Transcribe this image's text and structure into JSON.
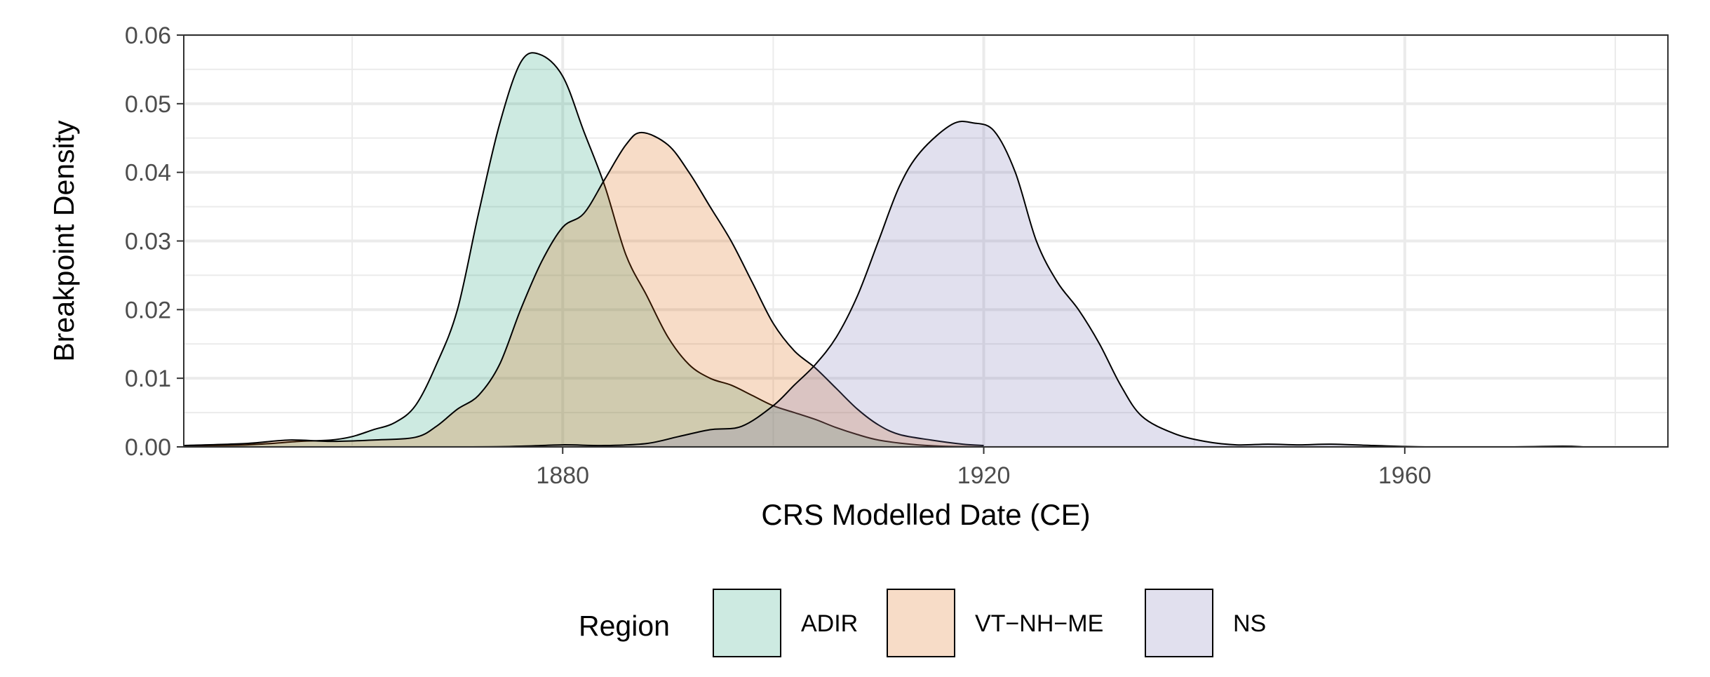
{
  "chart_data": {
    "type": "area",
    "subtype": "density",
    "title": "",
    "xlabel": "CRS Modelled Date (CE)",
    "ylabel": "Breakpoint Density",
    "xlim": [
      1844,
      1985
    ],
    "ylim": [
      0,
      0.06
    ],
    "x_ticks": [
      1880,
      1920,
      1960
    ],
    "x_minor_ticks": [
      1860,
      1900,
      1940,
      1980
    ],
    "y_ticks": [
      0.0,
      0.01,
      0.02,
      0.03,
      0.04,
      0.05,
      0.06
    ],
    "y_tick_labels": [
      "0.00",
      "0.01",
      "0.02",
      "0.03",
      "0.04",
      "0.05",
      "0.06"
    ],
    "x_tick_labels": [
      "1880",
      "1920",
      "1960"
    ],
    "grid": true,
    "legend": {
      "title": "Region",
      "position": "bottom"
    },
    "series": [
      {
        "name": "ADIR",
        "color": "#1b9e77",
        "points": [
          [
            1844,
            0.0002
          ],
          [
            1850,
            0.0003
          ],
          [
            1855,
            0.0008
          ],
          [
            1858,
            0.001
          ],
          [
            1860,
            0.0015
          ],
          [
            1862,
            0.0025
          ],
          [
            1864,
            0.0035
          ],
          [
            1866,
            0.006
          ],
          [
            1868,
            0.012
          ],
          [
            1870,
            0.02
          ],
          [
            1872,
            0.034
          ],
          [
            1874,
            0.047
          ],
          [
            1876,
            0.056
          ],
          [
            1877.8,
            0.0572
          ],
          [
            1880,
            0.054
          ],
          [
            1882,
            0.046
          ],
          [
            1884,
            0.038
          ],
          [
            1886,
            0.028
          ],
          [
            1888,
            0.022
          ],
          [
            1890,
            0.016
          ],
          [
            1892,
            0.012
          ],
          [
            1894,
            0.01
          ],
          [
            1896,
            0.009
          ],
          [
            1898,
            0.0075
          ],
          [
            1900,
            0.006
          ],
          [
            1902,
            0.005
          ],
          [
            1904,
            0.004
          ],
          [
            1906,
            0.0028
          ],
          [
            1908,
            0.0018
          ],
          [
            1910,
            0.001
          ],
          [
            1913,
            0.0004
          ],
          [
            1916,
            0.0001
          ],
          [
            1920,
            0.0
          ]
        ]
      },
      {
        "name": "VT−NH−ME",
        "color": "#d95f02",
        "points": [
          [
            1844,
            0.0002
          ],
          [
            1850,
            0.0005
          ],
          [
            1854,
            0.001
          ],
          [
            1858,
            0.0008
          ],
          [
            1862,
            0.001
          ],
          [
            1866,
            0.0014
          ],
          [
            1868,
            0.003
          ],
          [
            1870,
            0.0055
          ],
          [
            1872,
            0.0075
          ],
          [
            1874,
            0.012
          ],
          [
            1876,
            0.02
          ],
          [
            1878,
            0.027
          ],
          [
            1880,
            0.032
          ],
          [
            1882,
            0.034
          ],
          [
            1884,
            0.039
          ],
          [
            1886,
            0.044
          ],
          [
            1887.5,
            0.0458
          ],
          [
            1890,
            0.044
          ],
          [
            1892,
            0.04
          ],
          [
            1894,
            0.035
          ],
          [
            1896,
            0.03
          ],
          [
            1898,
            0.024
          ],
          [
            1900,
            0.018
          ],
          [
            1902,
            0.014
          ],
          [
            1904,
            0.0115
          ],
          [
            1906,
            0.0085
          ],
          [
            1908,
            0.0055
          ],
          [
            1910,
            0.0032
          ],
          [
            1912,
            0.0018
          ],
          [
            1915,
            0.001
          ],
          [
            1918,
            0.0004
          ],
          [
            1920,
            0.0002
          ]
        ]
      },
      {
        "name": "NS",
        "color": "#7570b3",
        "points": [
          [
            1844,
            0.0
          ],
          [
            1870,
            0.0
          ],
          [
            1876,
            0.0001
          ],
          [
            1880,
            0.0003
          ],
          [
            1884,
            0.0002
          ],
          [
            1888,
            0.0005
          ],
          [
            1891,
            0.0015
          ],
          [
            1894,
            0.0025
          ],
          [
            1897,
            0.003
          ],
          [
            1900,
            0.006
          ],
          [
            1902,
            0.009
          ],
          [
            1904,
            0.012
          ],
          [
            1906,
            0.016
          ],
          [
            1908,
            0.022
          ],
          [
            1910,
            0.03
          ],
          [
            1912,
            0.038
          ],
          [
            1914,
            0.043
          ],
          [
            1917,
            0.047
          ],
          [
            1919,
            0.0472
          ],
          [
            1921,
            0.046
          ],
          [
            1923,
            0.04
          ],
          [
            1925,
            0.03
          ],
          [
            1927,
            0.024
          ],
          [
            1929,
            0.02
          ],
          [
            1931,
            0.015
          ],
          [
            1933,
            0.009
          ],
          [
            1935,
            0.0045
          ],
          [
            1938,
            0.002
          ],
          [
            1941,
            0.0008
          ],
          [
            1944,
            0.0003
          ],
          [
            1947,
            0.0004
          ],
          [
            1950,
            0.0003
          ],
          [
            1953,
            0.0004
          ],
          [
            1957,
            0.0002
          ],
          [
            1962,
            0.0
          ],
          [
            1970,
            0.0
          ],
          [
            1975,
            0.0001
          ],
          [
            1977,
            0.0
          ]
        ]
      }
    ]
  }
}
